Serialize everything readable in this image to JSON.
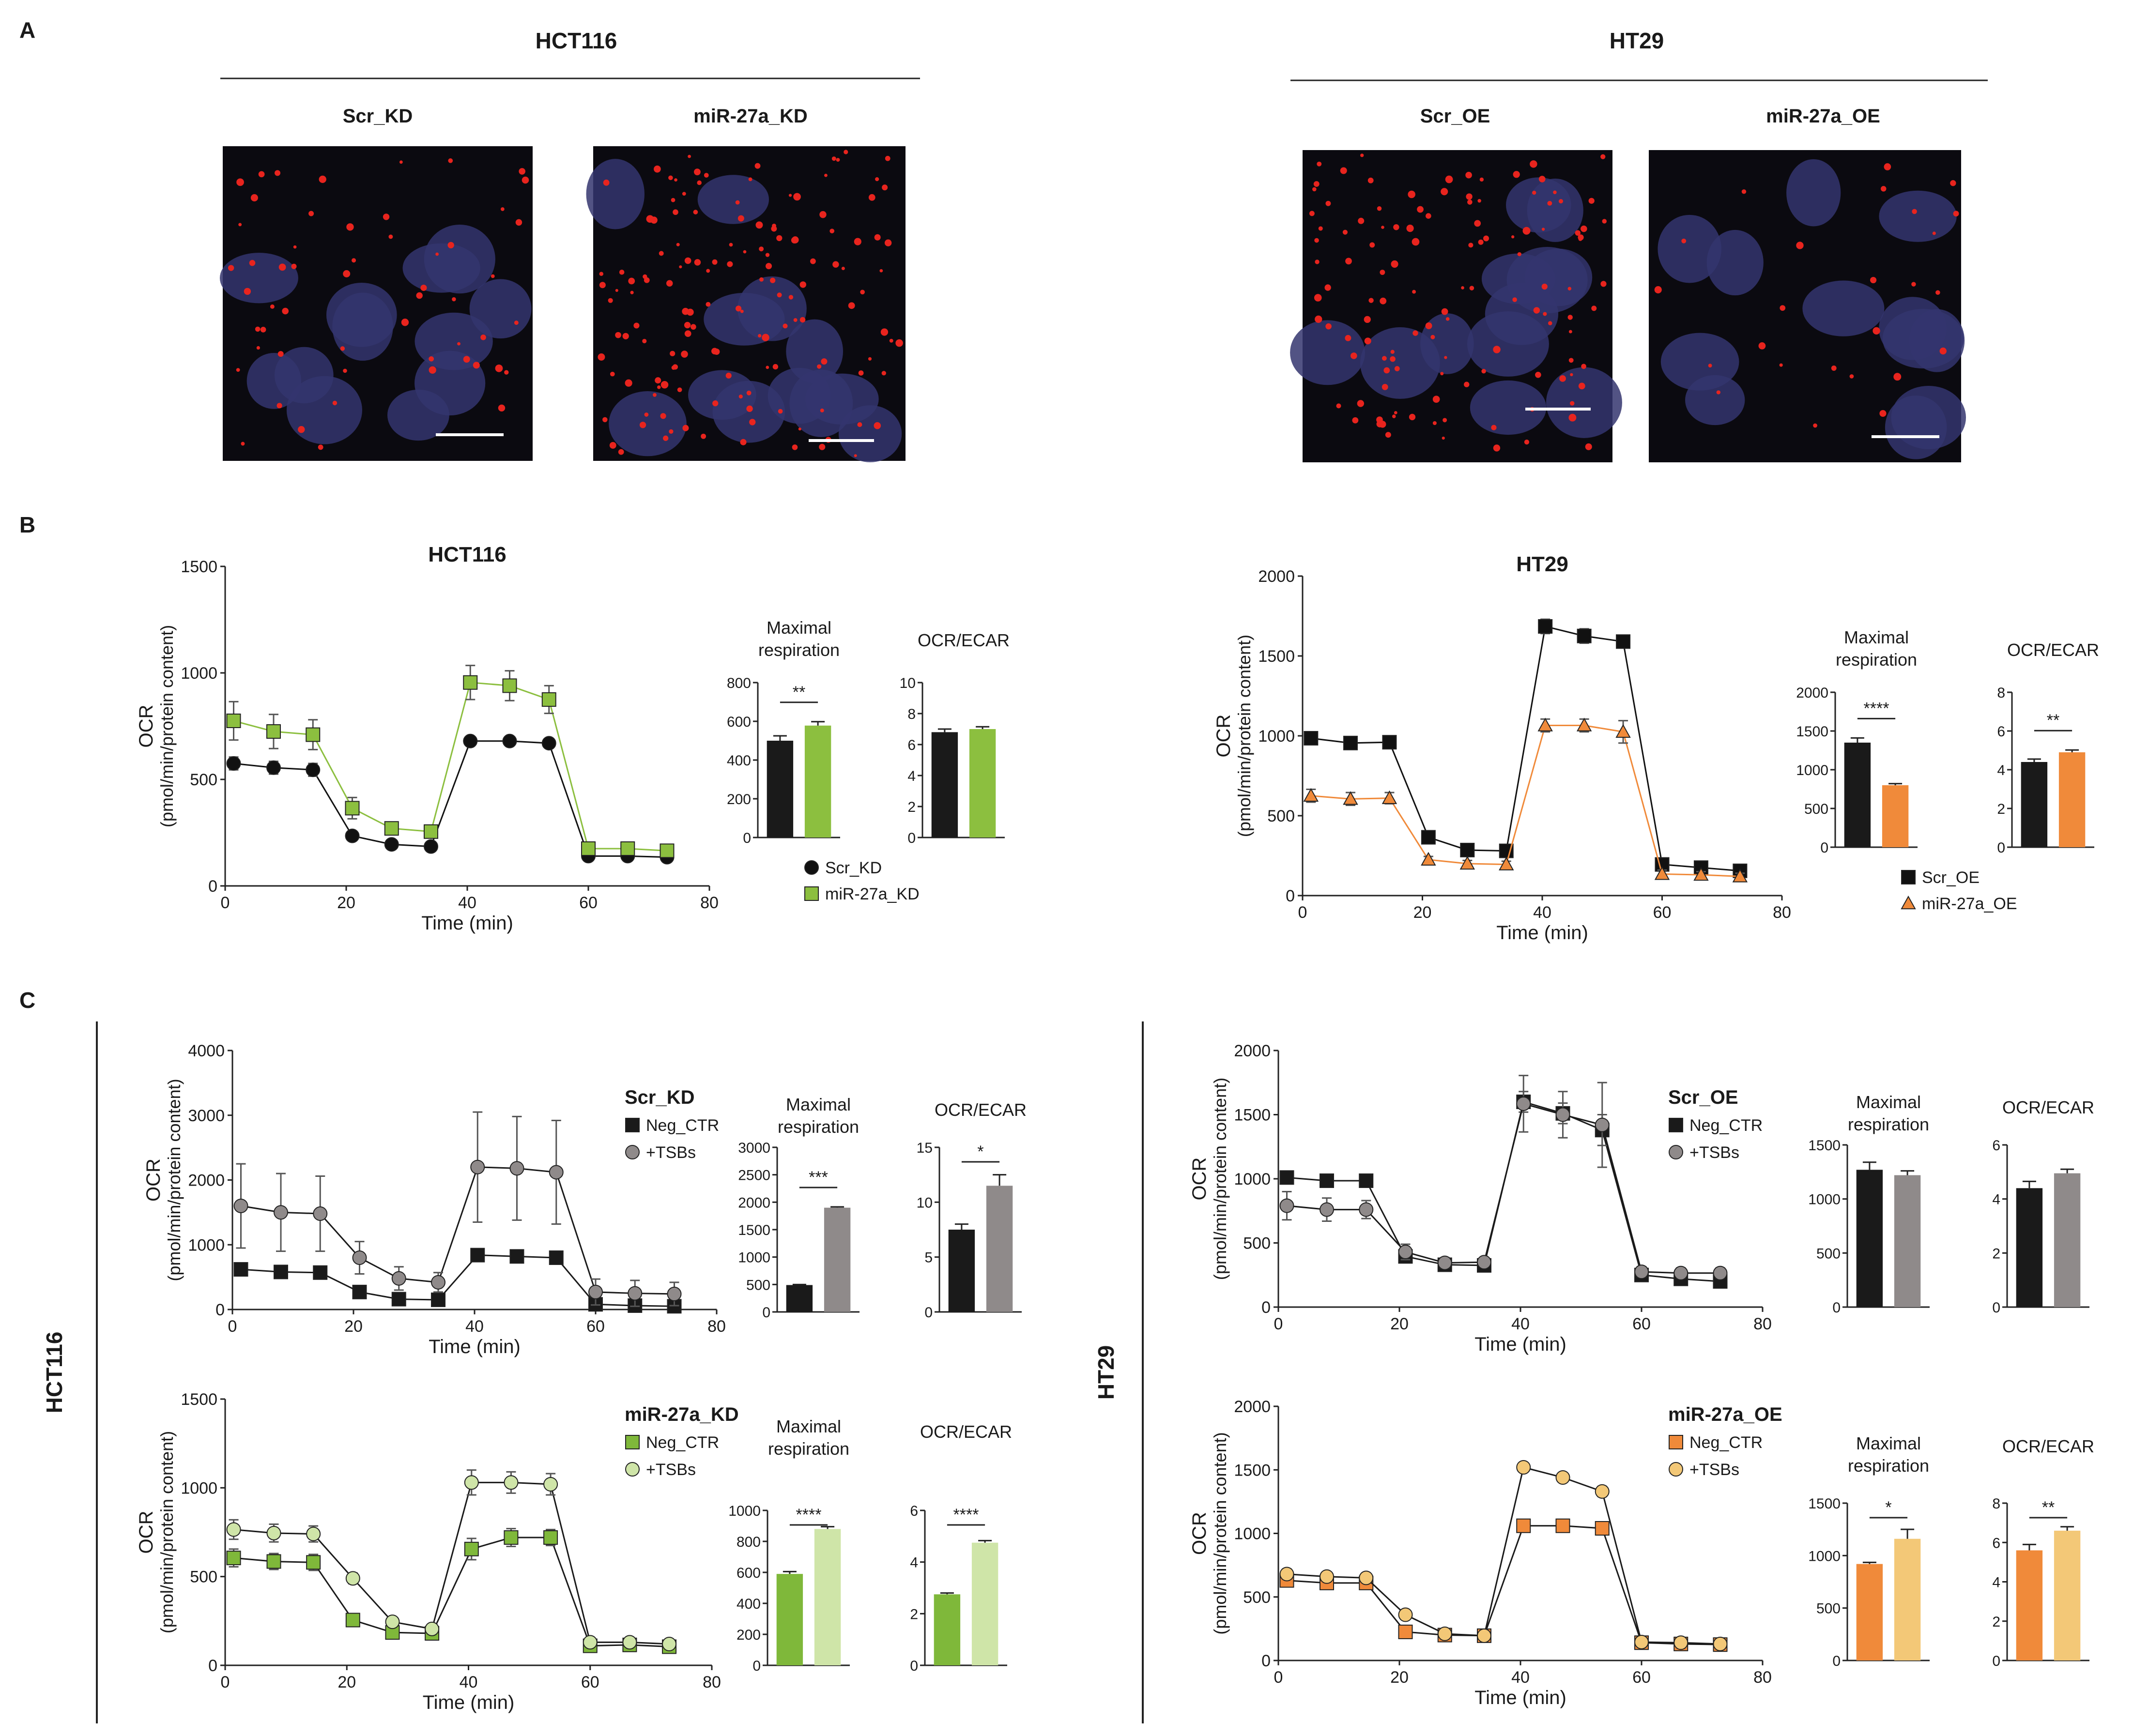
{
  "figure": {
    "panel_letters": {
      "a": "A",
      "b": "B",
      "c": "C"
    },
    "panel_a": {
      "groups": [
        {
          "title": "HCT116",
          "images": [
            "Scr_KD",
            "miR-27a_KD"
          ]
        },
        {
          "title": "HT29",
          "images": [
            "Scr_OE",
            "miR-27a_OE"
          ]
        }
      ],
      "colors": {
        "background": "#0b0a10",
        "nucleus": "#34356e",
        "puncta": "#e8241e",
        "scale_bar": "#ffffff"
      }
    },
    "side_labels": {
      "c_left": "HCT116",
      "c_right": "HT29"
    }
  },
  "chart_data": [
    {
      "id": "b_hct116_ocr",
      "type": "line",
      "title": "HCT116",
      "xlabel": "Time (min)",
      "ylabel": "OCR",
      "ylabel2": "(pmol/min/protein content)",
      "xlim": [
        0,
        80
      ],
      "ylim": [
        0,
        1500
      ],
      "xticks": [
        "0",
        "20",
        "40",
        "60",
        "80"
      ],
      "yticks": [
        "0",
        "500",
        "1000",
        "1500"
      ],
      "x": [
        1.4,
        8,
        14.5,
        21,
        27.5,
        34,
        40.5,
        47,
        53.5,
        60,
        66.5,
        73
      ],
      "series": [
        {
          "name": "Scr_KD",
          "color": "#111111",
          "line": "#111111",
          "marker": "circle",
          "values": [
            575,
            555,
            545,
            235,
            195,
            185,
            680,
            680,
            670,
            140,
            140,
            135
          ],
          "err": [
            30,
            30,
            30,
            20,
            15,
            15,
            15,
            15,
            15,
            15,
            15,
            15
          ]
        },
        {
          "name": "miR-27a_KD",
          "color": "#8cbf3f",
          "line": "#8cbf3f",
          "marker": "square",
          "values": [
            775,
            725,
            710,
            365,
            270,
            255,
            955,
            940,
            875,
            175,
            175,
            165
          ],
          "err": [
            90,
            80,
            70,
            50,
            30,
            25,
            80,
            70,
            65,
            25,
            20,
            20
          ]
        }
      ],
      "legend": [
        "Scr_KD",
        "miR-27a_KD"
      ],
      "legend_placement": "below-bars"
    },
    {
      "id": "b_hct116_maxresp",
      "type": "bar",
      "title": "Maximal respiration",
      "ylim": [
        0,
        800
      ],
      "yticks": [
        "0",
        "200",
        "400",
        "600",
        "800"
      ],
      "categories": [
        "Scr_KD",
        "miR-27a_KD"
      ],
      "values": [
        500,
        578
      ],
      "err": [
        25,
        20
      ],
      "colors": [
        "#1a1a1a",
        "#8cbf3f"
      ],
      "significance": "**"
    },
    {
      "id": "b_hct116_ocrecar",
      "type": "bar",
      "title": "OCR/ECAR",
      "ylim": [
        0,
        10
      ],
      "yticks": [
        "0",
        "2",
        "4",
        "6",
        "8",
        "10"
      ],
      "categories": [
        "Scr_KD",
        "miR-27a_KD"
      ],
      "values": [
        6.8,
        7.0
      ],
      "err": [
        0.2,
        0.15
      ],
      "colors": [
        "#1a1a1a",
        "#8cbf3f"
      ],
      "significance": ""
    },
    {
      "id": "b_ht29_ocr",
      "type": "line",
      "title": "HT29",
      "xlabel": "Time (min)",
      "ylabel": "OCR",
      "ylabel2": "(pmol/min/protein content)",
      "xlim": [
        0,
        80
      ],
      "ylim": [
        0,
        2000
      ],
      "xticks": [
        "0",
        "20",
        "40",
        "60",
        "80"
      ],
      "yticks": [
        "0",
        "500",
        "1000",
        "1500",
        "2000"
      ],
      "x": [
        1.4,
        8,
        14.5,
        21,
        27.5,
        34,
        40.5,
        47,
        53.5,
        60,
        66.5,
        73
      ],
      "series": [
        {
          "name": "Scr_OE",
          "color": "#111111",
          "line": "#111111",
          "marker": "square",
          "values": [
            985,
            955,
            960,
            365,
            285,
            280,
            1685,
            1625,
            1590,
            195,
            175,
            155
          ],
          "err": [
            20,
            25,
            20,
            40,
            20,
            20,
            45,
            45,
            40,
            30,
            25,
            25
          ]
        },
        {
          "name": "miR-27a_OE",
          "color": "#f08a3a",
          "line": "#f08a3a",
          "marker": "triangle",
          "values": [
            625,
            605,
            610,
            225,
            200,
            195,
            1065,
            1065,
            1025,
            135,
            130,
            120
          ],
          "err": [
            40,
            40,
            35,
            20,
            20,
            20,
            40,
            40,
            70,
            25,
            20,
            20
          ]
        }
      ],
      "legend": [
        "Scr_OE",
        "miR-27a_OE"
      ],
      "legend_placement": "below-bars"
    },
    {
      "id": "b_ht29_maxresp",
      "type": "bar",
      "title": "Maximal respiration",
      "ylim": [
        0,
        2000
      ],
      "yticks": [
        "0",
        "500",
        "1000",
        "1500",
        "2000"
      ],
      "categories": [
        "Scr_OE",
        "miR-27a_OE"
      ],
      "values": [
        1350,
        800
      ],
      "err": [
        60,
        20
      ],
      "colors": [
        "#1a1a1a",
        "#f08a3a"
      ],
      "significance": "****"
    },
    {
      "id": "b_ht29_ocrecar",
      "type": "bar",
      "title": "OCR/ECAR",
      "ylim": [
        0,
        8
      ],
      "yticks": [
        "0",
        "2",
        "4",
        "6",
        "8"
      ],
      "categories": [
        "Scr_OE",
        "miR-27a_OE"
      ],
      "values": [
        4.4,
        4.9
      ],
      "err": [
        0.15,
        0.12
      ],
      "colors": [
        "#1a1a1a",
        "#f08a3a"
      ],
      "significance": "**"
    },
    {
      "id": "c_hct116_scr_ocr",
      "type": "line",
      "title": "",
      "xlabel": "Time (min)",
      "ylabel": "OCR",
      "ylabel2": "(pmol/min/protein content)",
      "xlim": [
        0,
        80
      ],
      "ylim": [
        0,
        4000
      ],
      "xticks": [
        "0",
        "20",
        "40",
        "60",
        "80"
      ],
      "yticks": [
        "0",
        "1000",
        "2000",
        "3000",
        "4000"
      ],
      "x": [
        1.4,
        8,
        14.5,
        21,
        27.5,
        34,
        40.5,
        47,
        53.5,
        60,
        66.5,
        73
      ],
      "series": [
        {
          "name": "Neg_CTR",
          "color": "#1a1a1a",
          "line": "#1a1a1a",
          "marker": "square",
          "values": [
            620,
            580,
            570,
            270,
            160,
            150,
            840,
            820,
            800,
            80,
            60,
            50
          ],
          "err": [
            60,
            50,
            50,
            40,
            30,
            30,
            60,
            60,
            60,
            20,
            20,
            20
          ]
        },
        {
          "name": "+TSBs",
          "color": "#8f8a8a",
          "line": "#1a1a1a",
          "marker": "circle",
          "values": [
            1600,
            1500,
            1480,
            800,
            480,
            420,
            2200,
            2180,
            2120,
            270,
            250,
            240
          ],
          "err": [
            650,
            600,
            580,
            250,
            180,
            150,
            850,
            800,
            800,
            200,
            200,
            180
          ]
        }
      ],
      "legend_title": "Scr_KD",
      "legend": [
        "Neg_CTR",
        "+TSBs"
      ],
      "legend_placement": "right"
    },
    {
      "id": "c_hct116_scr_maxresp",
      "type": "bar",
      "title": "Maximal respiration",
      "ylim": [
        0,
        3000
      ],
      "yticks": [
        "0",
        "500",
        "1000",
        "1500",
        "2000",
        "2500",
        "3000"
      ],
      "categories": [
        "Neg_CTR",
        "+TSBs"
      ],
      "values": [
        490,
        1900
      ],
      "err": [
        10,
        15
      ],
      "colors": [
        "#1a1a1a",
        "#8f8a8a"
      ],
      "significance": "***"
    },
    {
      "id": "c_hct116_scr_ocrecar",
      "type": "bar",
      "title": "OCR/ECAR",
      "ylim": [
        0,
        15
      ],
      "yticks": [
        "0",
        "5",
        "10",
        "15"
      ],
      "categories": [
        "Neg_CTR",
        "+TSBs"
      ],
      "values": [
        7.5,
        11.5
      ],
      "err": [
        0.5,
        1.0
      ],
      "colors": [
        "#1a1a1a",
        "#8f8a8a"
      ],
      "significance": "*"
    },
    {
      "id": "c_hct116_mir_ocr",
      "type": "line",
      "title": "",
      "xlabel": "Time (min)",
      "ylabel": "OCR",
      "ylabel2": "(pmol/min/protein content)",
      "xlim": [
        0,
        80
      ],
      "ylim": [
        0,
        1500
      ],
      "xticks": [
        "0",
        "20",
        "40",
        "60",
        "80"
      ],
      "yticks": [
        "0",
        "500",
        "1000",
        "1500"
      ],
      "x": [
        1.4,
        8,
        14.5,
        21,
        27.5,
        34,
        40.5,
        47,
        53.5,
        60,
        66.5,
        73
      ],
      "series": [
        {
          "name": "Neg_CTR",
          "color": "#7fb83a",
          "line": "#1a1a1a",
          "marker": "square",
          "values": [
            605,
            585,
            580,
            255,
            185,
            180,
            655,
            720,
            720,
            110,
            115,
            105
          ],
          "err": [
            50,
            45,
            45,
            25,
            20,
            20,
            60,
            50,
            45,
            20,
            20,
            20
          ]
        },
        {
          "name": "+TSBs",
          "color": "#cfe5a8",
          "line": "#1a1a1a",
          "marker": "circle",
          "values": [
            765,
            745,
            740,
            490,
            245,
            205,
            1030,
            1030,
            1020,
            130,
            130,
            120
          ],
          "err": [
            55,
            50,
            45,
            30,
            20,
            20,
            70,
            60,
            60,
            20,
            20,
            20
          ]
        }
      ],
      "legend_title": "miR-27a_KD",
      "legend": [
        "Neg_CTR",
        "+TSBs"
      ],
      "legend_placement": "right"
    },
    {
      "id": "c_hct116_mir_maxresp",
      "type": "bar",
      "title": "Maximal respiration",
      "ylim": [
        0,
        1000
      ],
      "yticks": [
        "0",
        "200",
        "400",
        "600",
        "800",
        "1000"
      ],
      "categories": [
        "Neg_CTR",
        "+TSBs"
      ],
      "values": [
        590,
        880
      ],
      "err": [
        15,
        15
      ],
      "colors": [
        "#7fb83a",
        "#cfe5a8"
      ],
      "significance": "****"
    },
    {
      "id": "c_hct116_mir_ocrecar",
      "type": "bar",
      "title": "OCR/ECAR",
      "ylim": [
        0,
        6
      ],
      "yticks": [
        "0",
        "2",
        "4",
        "6"
      ],
      "categories": [
        "Neg_CTR",
        "+TSBs"
      ],
      "values": [
        2.75,
        4.75
      ],
      "err": [
        0.05,
        0.08
      ],
      "colors": [
        "#7fb83a",
        "#cfe5a8"
      ],
      "significance": "****"
    },
    {
      "id": "c_ht29_scr_ocr",
      "type": "line",
      "title": "",
      "xlabel": "Time (min)",
      "ylabel": "OCR",
      "ylabel2": "(pmol/min/protein content)",
      "xlim": [
        0,
        80
      ],
      "ylim": [
        0,
        2000
      ],
      "xticks": [
        "0",
        "20",
        "40",
        "60",
        "80"
      ],
      "yticks": [
        "0",
        "500",
        "1000",
        "1500",
        "2000"
      ],
      "x": [
        1.4,
        8,
        14.5,
        21,
        27.5,
        34,
        40.5,
        47,
        53.5,
        60,
        66.5,
        73
      ],
      "series": [
        {
          "name": "Neg_CTR",
          "color": "#1a1a1a",
          "line": "#1a1a1a",
          "marker": "square",
          "values": [
            1010,
            985,
            985,
            395,
            330,
            325,
            1600,
            1510,
            1380,
            250,
            220,
            200
          ],
          "err": [
            20,
            20,
            20,
            40,
            30,
            30,
            80,
            80,
            120,
            30,
            30,
            30
          ]
        },
        {
          "name": "+TSBs",
          "color": "#8f8a8a",
          "line": "#1a1a1a",
          "marker": "circle",
          "values": [
            790,
            760,
            760,
            430,
            345,
            350,
            1585,
            1500,
            1420,
            275,
            265,
            265
          ],
          "err": [
            110,
            90,
            70,
            60,
            40,
            30,
            220,
            180,
            330,
            40,
            40,
            40
          ]
        }
      ],
      "legend_title": "Scr_OE",
      "legend": [
        "Neg_CTR",
        "+TSBs"
      ],
      "legend_placement": "right"
    },
    {
      "id": "c_ht29_scr_maxresp",
      "type": "bar",
      "title": "Maximal respiration",
      "ylim": [
        0,
        1500
      ],
      "yticks": [
        "0",
        "500",
        "1000",
        "1500"
      ],
      "categories": [
        "Neg_CTR",
        "+TSBs"
      ],
      "values": [
        1270,
        1220
      ],
      "err": [
        70,
        40
      ],
      "colors": [
        "#1a1a1a",
        "#8f8a8a"
      ],
      "significance": ""
    },
    {
      "id": "c_ht29_scr_ocrecar",
      "type": "bar",
      "title": "OCR/ECAR",
      "ylim": [
        0,
        6
      ],
      "yticks": [
        "0",
        "2",
        "4",
        "6"
      ],
      "categories": [
        "Neg_CTR",
        "+TSBs"
      ],
      "values": [
        4.4,
        4.95
      ],
      "err": [
        0.25,
        0.15
      ],
      "colors": [
        "#1a1a1a",
        "#8f8a8a"
      ],
      "significance": ""
    },
    {
      "id": "c_ht29_mir_ocr",
      "type": "line",
      "title": "",
      "xlabel": "Time (min)",
      "ylabel": "OCR",
      "ylabel2": "(pmol/min/protein content)",
      "xlim": [
        0,
        80
      ],
      "ylim": [
        0,
        2000
      ],
      "xticks": [
        "0",
        "20",
        "40",
        "60",
        "80"
      ],
      "yticks": [
        "0",
        "500",
        "1000",
        "1500",
        "2000"
      ],
      "x": [
        1.4,
        8,
        14.5,
        21,
        27.5,
        34,
        40.5,
        47,
        53.5,
        60,
        66.5,
        73
      ],
      "series": [
        {
          "name": "Neg_CTR",
          "color": "#f08a3a",
          "line": "#1a1a1a",
          "marker": "square",
          "values": [
            630,
            610,
            610,
            225,
            200,
            195,
            1060,
            1060,
            1040,
            140,
            130,
            125
          ],
          "err": [
            40,
            40,
            40,
            25,
            20,
            20,
            50,
            40,
            50,
            20,
            20,
            20
          ]
        },
        {
          "name": "+TSBs",
          "color": "#f3c877",
          "line": "#1a1a1a",
          "marker": "circle",
          "values": [
            680,
            660,
            650,
            360,
            210,
            195,
            1520,
            1440,
            1330,
            145,
            140,
            130
          ],
          "err": [
            40,
            35,
            35,
            30,
            20,
            20,
            30,
            25,
            40,
            20,
            20,
            20
          ]
        }
      ],
      "legend_title": "miR-27a_OE",
      "legend": [
        "Neg_CTR",
        "+TSBs"
      ],
      "legend_placement": "right"
    },
    {
      "id": "c_ht29_mir_maxresp",
      "type": "bar",
      "title": "Maximal respiration",
      "ylim": [
        0,
        1500
      ],
      "yticks": [
        "0",
        "500",
        "1000",
        "1500"
      ],
      "categories": [
        "Neg_CTR",
        "+TSBs"
      ],
      "values": [
        920,
        1160
      ],
      "err": [
        15,
        90
      ],
      "colors": [
        "#f08a3a",
        "#f3c877"
      ],
      "significance": "*"
    },
    {
      "id": "c_ht29_mir_ocrecar",
      "type": "bar",
      "title": "OCR/ECAR",
      "ylim": [
        0,
        8
      ],
      "yticks": [
        "0",
        "2",
        "4",
        "6",
        "8"
      ],
      "categories": [
        "Neg_CTR",
        "+TSBs"
      ],
      "values": [
        5.6,
        6.6
      ],
      "err": [
        0.3,
        0.2
      ],
      "colors": [
        "#f08a3a",
        "#f3c877"
      ],
      "significance": "**"
    }
  ]
}
